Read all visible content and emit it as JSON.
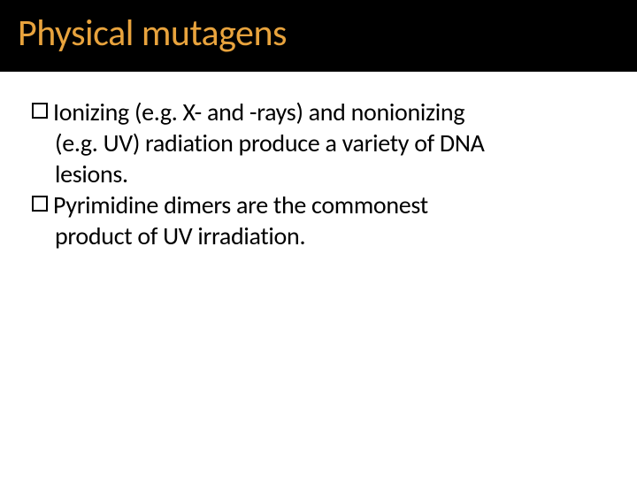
{
  "slide": {
    "title": "Physical mutagens",
    "title_color": "#e8a33d",
    "title_bg": "#000000",
    "title_fontsize": 42,
    "body_fontsize": 28,
    "body_color": "#000000",
    "background": "#ffffff",
    "bullets": [
      {
        "line1": "Ionizing (e.g. X- and -rays) and nonionizing",
        "line2": "(e.g. UV) radiation produce a variety of DNA",
        "line3": "lesions."
      },
      {
        "line1": "Pyrimidine dimers are the commonest",
        "line2": "product of UV irradiation."
      }
    ],
    "bullet_marker": {
      "type": "hollow-square",
      "size": 18,
      "border_width": 2,
      "border_color": "#000000"
    }
  }
}
